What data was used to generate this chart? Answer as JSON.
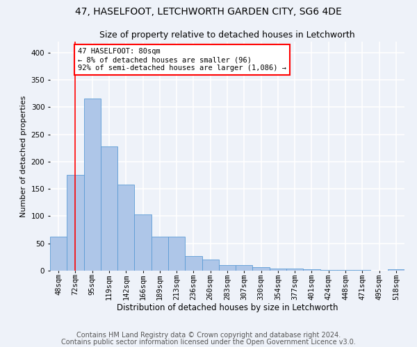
{
  "title1": "47, HASELFOOT, LETCHWORTH GARDEN CITY, SG6 4DE",
  "title2": "Size of property relative to detached houses in Letchworth",
  "xlabel": "Distribution of detached houses by size in Letchworth",
  "ylabel": "Number of detached properties",
  "categories": [
    "48sqm",
    "72sqm",
    "95sqm",
    "119sqm",
    "142sqm",
    "166sqm",
    "189sqm",
    "213sqm",
    "236sqm",
    "260sqm",
    "283sqm",
    "307sqm",
    "330sqm",
    "354sqm",
    "377sqm",
    "401sqm",
    "424sqm",
    "448sqm",
    "471sqm",
    "495sqm",
    "518sqm"
  ],
  "values": [
    63,
    175,
    315,
    228,
    158,
    103,
    62,
    62,
    27,
    21,
    10,
    10,
    6,
    4,
    4,
    2,
    1,
    1,
    1,
    0,
    2
  ],
  "bar_color": "#aec6e8",
  "bar_edge_color": "#5b9bd5",
  "annotation_text": "47 HASELFOOT: 80sqm\n← 8% of detached houses are smaller (96)\n92% of semi-detached houses are larger (1,086) →",
  "annotation_box_color": "white",
  "annotation_border_color": "red",
  "vline_color": "red",
  "vline_x_idx": 1,
  "ylim": [
    0,
    420
  ],
  "yticks": [
    0,
    50,
    100,
    150,
    200,
    250,
    300,
    350,
    400
  ],
  "footer1": "Contains HM Land Registry data © Crown copyright and database right 2024.",
  "footer2": "Contains public sector information licensed under the Open Government Licence v3.0.",
  "background_color": "#eef2f9",
  "grid_color": "#ffffff",
  "title1_fontsize": 10,
  "title2_fontsize": 9,
  "xlabel_fontsize": 8.5,
  "ylabel_fontsize": 8,
  "tick_fontsize": 7.5,
  "footer_fontsize": 7
}
